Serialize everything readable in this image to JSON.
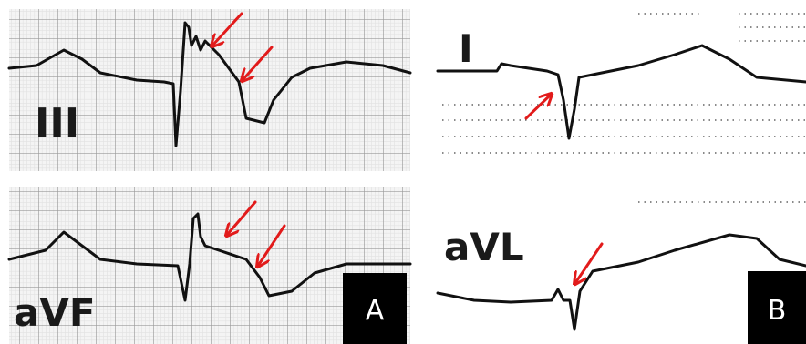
{
  "panels": [
    {
      "label": "A",
      "leads": [
        "III",
        "aVF"
      ]
    },
    {
      "label": "B",
      "leads": [
        "I",
        "aVL"
      ]
    }
  ]
}
